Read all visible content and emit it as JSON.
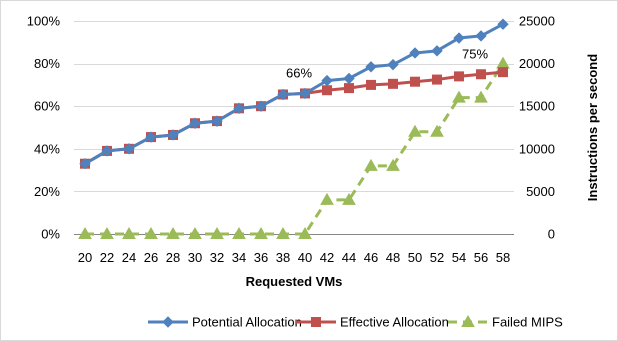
{
  "chart_data": {
    "type": "line",
    "xlabel": "Requested VMs",
    "ylabel_right": "Instructions per second",
    "categories": [
      "20",
      "22",
      "24",
      "26",
      "28",
      "30",
      "32",
      "34",
      "36",
      "38",
      "40",
      "42",
      "44",
      "46",
      "48",
      "50",
      "52",
      "54",
      "56",
      "58"
    ],
    "y_left": {
      "ylim": [
        0,
        100
      ],
      "ticks": [
        "0%",
        "20%",
        "40%",
        "60%",
        "80%",
        "100%"
      ],
      "tick_values": [
        0,
        20,
        40,
        60,
        80,
        100
      ]
    },
    "y_right": {
      "ylim": [
        0,
        25000
      ],
      "ticks": [
        "0",
        "5000",
        "10000",
        "15000",
        "20000",
        "25000"
      ],
      "tick_values": [
        0,
        5000,
        10000,
        15000,
        20000,
        25000
      ]
    },
    "grid": true,
    "legend": "bottom",
    "series": [
      {
        "name": "Potential Allocation",
        "axis": "left",
        "color": "#4F81BD",
        "marker": "diamond",
        "dash": "solid",
        "values": [
          33,
          39,
          40,
          45.5,
          46.5,
          52,
          53,
          59,
          60,
          65.5,
          66,
          72,
          73,
          78.5,
          79.5,
          85,
          86,
          92,
          93,
          98.5
        ]
      },
      {
        "name": "Effective Allocation",
        "axis": "left",
        "color": "#C0504D",
        "marker": "square",
        "dash": "solid",
        "values": [
          33,
          39,
          40,
          45.5,
          46.5,
          52,
          53,
          59,
          60,
          65.5,
          66,
          67.5,
          68.5,
          70,
          70.5,
          71.5,
          72.5,
          74,
          75,
          76
        ]
      },
      {
        "name": "Failed MIPS",
        "axis": "right",
        "color": "#9BBB59",
        "marker": "triangle",
        "dash": "dashed",
        "values": [
          0,
          0,
          0,
          0,
          0,
          0,
          0,
          0,
          0,
          0,
          0,
          4000,
          4000,
          8000,
          8000,
          12000,
          12000,
          16000,
          16000,
          20000
        ]
      }
    ],
    "annotations": [
      {
        "text": "66%",
        "category": "40",
        "value": 66
      },
      {
        "text": "75%",
        "category": "56",
        "value": 75
      }
    ]
  }
}
